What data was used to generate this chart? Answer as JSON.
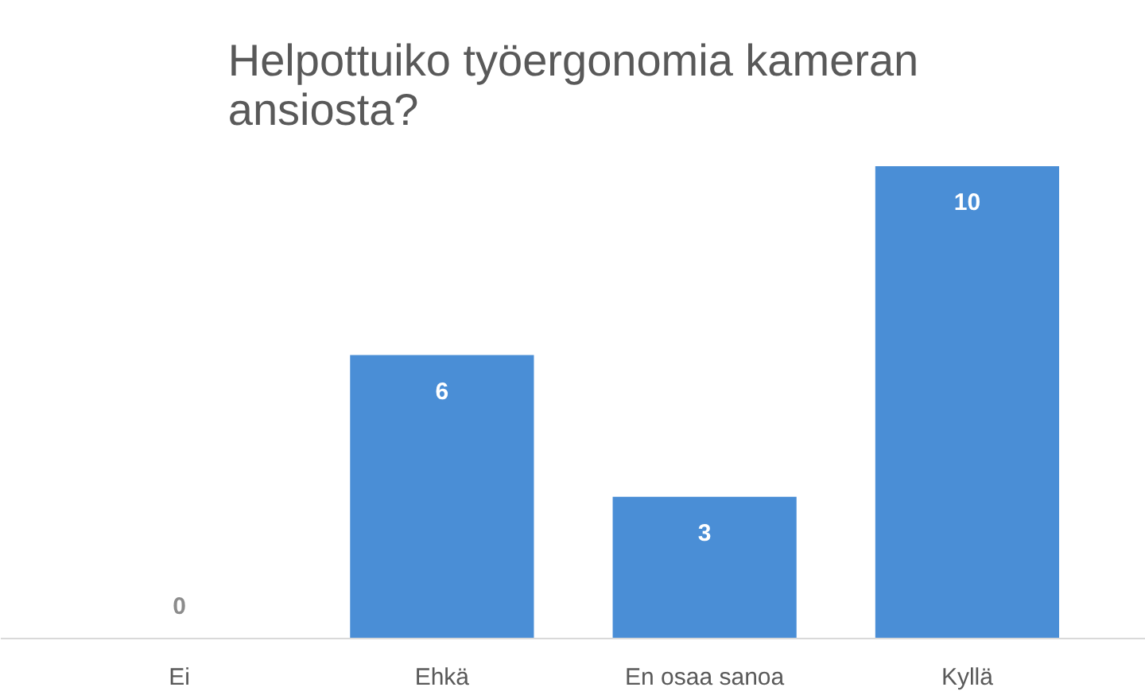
{
  "chart_data": {
    "type": "bar",
    "title": "Helpottuiko työergonomia kameran ansiosta?",
    "categories": [
      "Ei",
      "Ehkä",
      "En osaa sanoa",
      "Kyllä"
    ],
    "values": [
      0,
      6,
      3,
      10
    ],
    "color": "#4a8ed6",
    "data_labels": true,
    "grid": false
  }
}
